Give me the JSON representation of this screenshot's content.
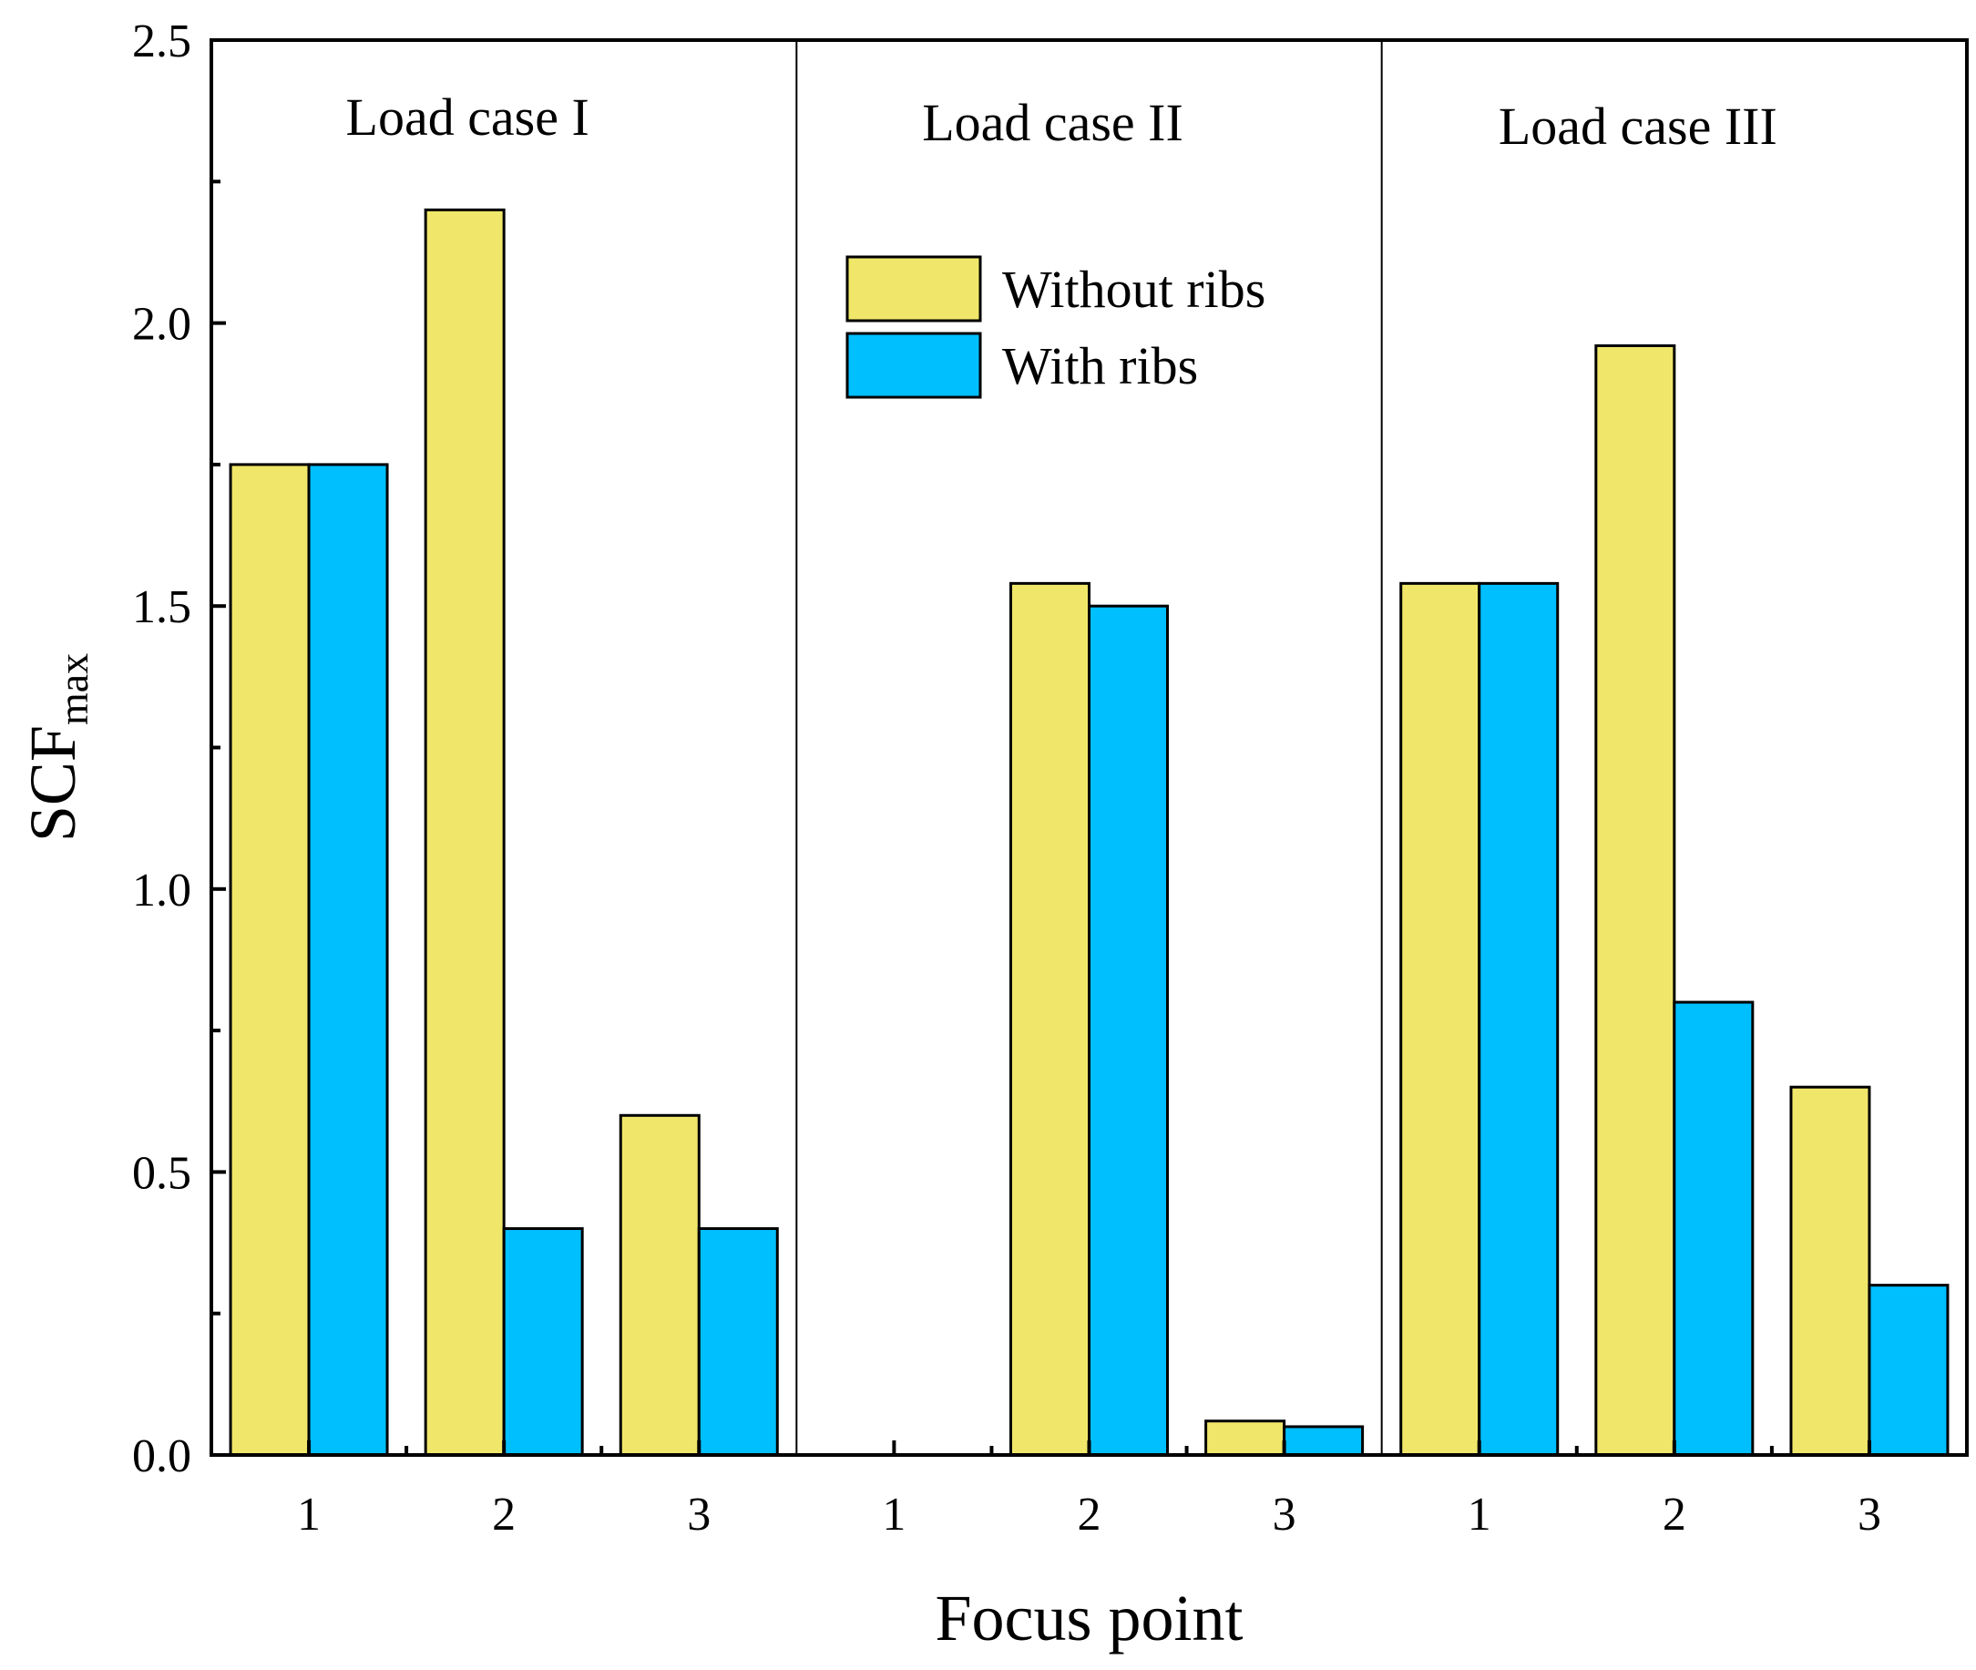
{
  "chart_data": {
    "type": "bar",
    "title": "",
    "xlabel": "Focus point",
    "ylabel": "SCF",
    "ylabel_subscript": "max",
    "ylim": [
      0,
      2.5
    ],
    "yticks": [
      "0.0",
      "0.5",
      "1.0",
      "1.5",
      "2.0",
      "2.5"
    ],
    "legend_position": "upper-center",
    "groups": [
      {
        "label": "Load case I",
        "categories": [
          "1",
          "2",
          "3"
        ],
        "series": [
          {
            "name": "Without ribs",
            "values": [
              1.75,
              2.2,
              0.6
            ]
          },
          {
            "name": "With ribs",
            "values": [
              1.75,
              0.4,
              0.4
            ]
          }
        ]
      },
      {
        "label": "Load case II",
        "categories": [
          "1",
          "2",
          "3"
        ],
        "series": [
          {
            "name": "Without ribs",
            "values": [
              0,
              1.54,
              0.06
            ]
          },
          {
            "name": "With ribs",
            "values": [
              0,
              1.5,
              0.05
            ]
          }
        ]
      },
      {
        "label": "Load case III",
        "categories": [
          "1",
          "2",
          "3"
        ],
        "series": [
          {
            "name": "Without ribs",
            "values": [
              1.54,
              1.96,
              0.65
            ]
          },
          {
            "name": "With ribs",
            "values": [
              1.54,
              0.8,
              0.3
            ]
          }
        ]
      }
    ],
    "legend": [
      {
        "name": "Without ribs",
        "color": "#F0E76A"
      },
      {
        "name": "With ribs",
        "color": "#00BFFF"
      }
    ]
  }
}
